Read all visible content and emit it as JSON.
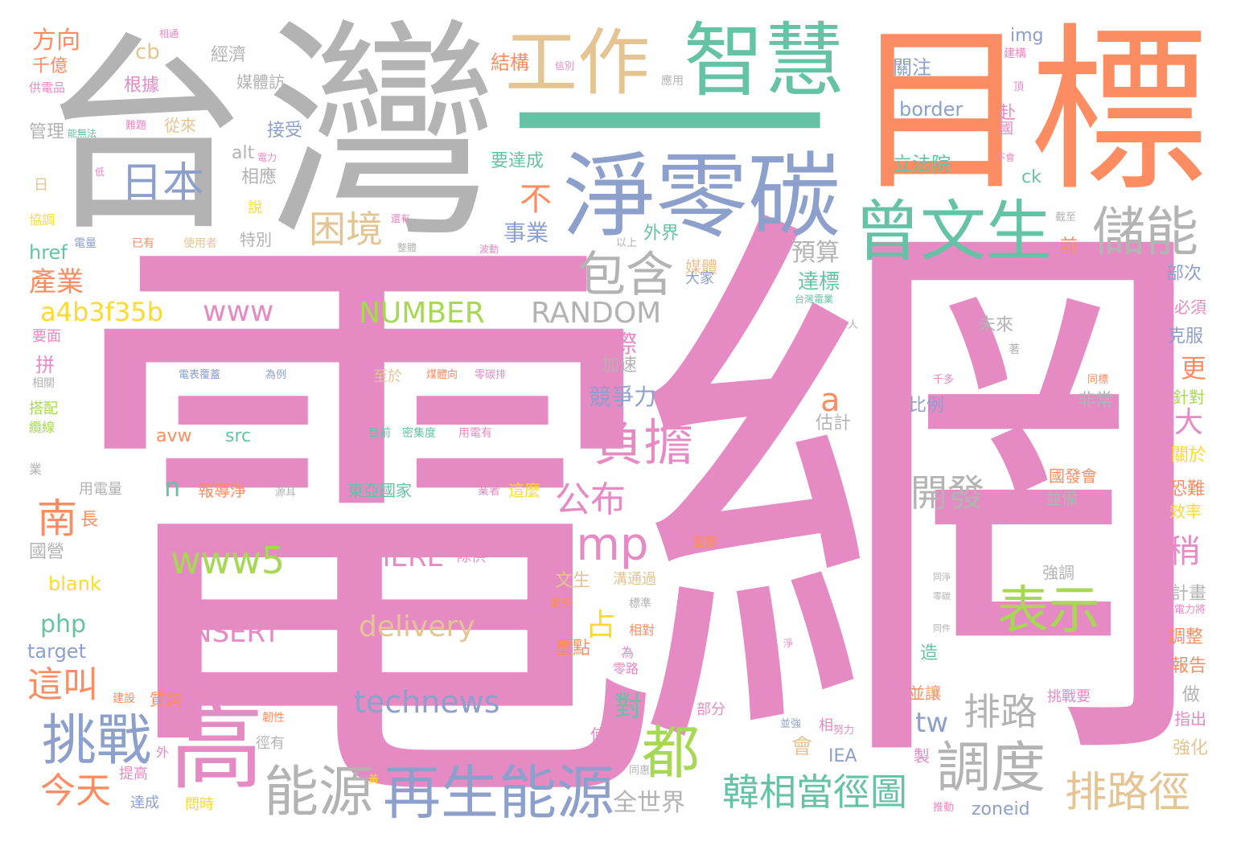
{
  "palette": {
    "pink": "#e58ac3",
    "gray": "#b3b3b3",
    "orange": "#fc8d62",
    "green": "#66c2a5",
    "blue": "#8da0cb",
    "tan": "#e5c494",
    "lime": "#a6d854",
    "yellow": "#ffd92f"
  },
  "words": {
    "w_dianwang_1": "電",
    "w_dianwang_2": "網",
    "w_taiwan_1": "台",
    "w_taiwan_2": "灣",
    "w_mubiao_1": "目",
    "w_mubiao_2": "標",
    "w_yi": "一",
    "w_jinglingtan": "淨零碳",
    "w_zhihui": "智慧",
    "w_gongzuo": "工作",
    "w_zengwensheng": "曾文生",
    "w_chuneng": "儲能",
    "w_riben": "日本",
    "w_gao": "高",
    "w_zaishengnengyuan": "再生能源",
    "w_nengyuan": "能源",
    "w_tiaozhan": "挑戰",
    "w_fudan": "負擔",
    "w_biaoshi": "表示",
    "w_tiaodu": "調度",
    "w_dou": "都",
    "w_paiLujing": "排路徑",
    "w_hanxiangdang": "韓相當徑圖",
    "w_baohan": "包含",
    "w_kunjing": "困境",
    "w_amp": "amp",
    "w_www5": "www5",
    "w_technews": "technews",
    "w_delivery": "delivery",
    "w_insert": "INSERT",
    "w_here": "HERE",
    "w_number": "NUMBER",
    "w_random": "RANDOM",
    "w_www": "www",
    "w_a4b": "a4b3f35b",
    "w_kaifa": "開發",
    "w_gongbu": "公布",
    "w_jintian": "今天",
    "w_zhejiao": "這叫",
    "w_nan": "南",
    "w_chanye": "產業",
    "w_fangxiang": "方向",
    "w_qianyi": "千億",
    "w_paiLu": "排路",
    "w_guanzhu": "關注",
    "w_border": "border",
    "w_lifayuan": "立法院",
    "w_img": "img",
    "w_guoji": "國際",
    "w_jingzhengli": "競爭力",
    "w_shiye": "事業",
    "w_bu": "不",
    "w_yusuan": "預算",
    "w_dabiao": "達標",
    "w_quanshijie": "全世界",
    "w_shao": "稍",
    "w_da": "大",
    "w_geng": "更",
    "w_zhan": "占",
    "w_dui": "對",
    "w_php": "php",
    "w_target": "target",
    "w_blank": "blank",
    "w_href": "href",
    "w_tw": "tw",
    "w_iea": "IEA",
    "w_zoneid": "zoneid",
    "w_avw": "avw",
    "w_src": "src",
    "w_n": "n",
    "w_a": "a",
    "w_cb": "cb",
    "w_alt": "alt",
    "w_ck": "ck",
    "w_jiegou": "結構",
    "w_jingji": "經濟",
    "w_genju": "根據",
    "w_meitifang": "媒體訪",
    "w_jieshou": "接受",
    "w_xiangying": "相應",
    "w_tebie": "特別",
    "w_guanli": "管理",
    "w_congLai": "從來",
    "w_yaodacheng": "要達成",
    "w_waijie": "外界",
    "w_meiti": "媒體",
    "w_dajia": "大家",
    "w_weilai": "未來",
    "w_jiasu": "加速",
    "w_bili": "比例",
    "w_guji": "估計",
    "w_feichang": "非常",
    "w_bingbei": "並備",
    "w_guofahui": "國發會",
    "w_qiangdiao": "強調",
    "w_jihua": "計畫",
    "w_tiaozheng": "調整",
    "w_baogao": "報告",
    "w_zuo": "做",
    "w_zhichu": "指出",
    "w_qianghua": "強化",
    "w_kongnan": "恐難",
    "w_xiaolv": "效率",
    "w_guanyu": "關於",
    "w_zhendui": "針對",
    "w_kefu": "克服",
    "w_bixu": "必須",
    "w_bu_ci": "部次",
    "w_qian": "前",
    "w_fu": "赴",
    "w_guo": "國",
    "w_yaomian": "要面",
    "w_pin": "拼",
    "w_dajpei": "搭配",
    "w_guoying": "國營",
    "w_chang": "長",
    "w_yongdianliang": "用電量",
    "w_baodaojing": "報導淨",
    "w_dongya": "東亞國家",
    "w_zhemo": "這麼",
    "w_zhongdian": "重點",
    "w_tongshi": "同時",
    "w_shiyong": "使用",
    "w_bufen": "部分",
    "w_wenshsheng": "文生",
    "w_goutong": "溝通過",
    "w_chuGong": "除供",
    "w_zhongyao": "重要",
    "w_zhiyu": "至於",
    "w_zaoyin": "造",
    "w_bingrang": "並讓",
    "w_tiaozhanyao": "挑戰要",
    "w_zhi": "製",
    "w_wenshi": "問時",
    "w_dacheng": "達成",
    "w_tigao": "提高",
    "w_ri": "日",
    "w_shuo": "說",
    "w_gongdianpin": "供電品",
    "w_xieliao": "協調",
    "w_ye": "業",
    "w_mudi": "目前",
    "w_midu": "密集度",
    "w_yongdian": "用電有",
    "w_dianbiao": "電表覆蓋",
    "w_weili": "為例",
    "w_jinghao": "徑有",
    "w_renxing": "韌性",
    "w_lingtan": "零碳排",
    "w_meiliang": "煤體向",
    "w_xiangdui": "相對",
    "w_biaozhun": "標準",
    "w_wei": "為",
    "w_lingLu": "零路",
    "w_gengshi": "更是",
    "w_yiyou": "已有",
    "w_shiyongzhe": "使用者",
    "w_haiyou": "還有",
    "w_yishang": "以上",
    "w_dianliang": "電量",
    "w_hui": "會",
    "w_xiang": "相",
    "w_nuli": "努力",
    "w_bingqiang": "並強",
    "w_tonghui": "同惠",
    "w_tuidong": "推動",
    "w_gongye": "業者",
    "w_dianli": "電力將",
    "w_tongbiao": "同標",
    "w_qianduo": "千多",
    "w_jiegou2": "建構",
    "w_ding": "頂",
    "w_buhui": "不會",
    "w_jiezhi": "截至",
    "w_taidian": "台灣電業",
    "w_ren": "人",
    "w_zhu": "著",
    "w_tongjing": "同淨",
    "w_lingtan2": "零碳",
    "w_tongjian": "同件",
    "w_jing2": "淨",
    "w_yingyong": "應用",
    "w_xinzhi": "信別",
    "w_bodong": "波動",
    "w_jianshe": "建設",
    "w_zhixun": "質詢",
    "w_xiangguan": "相關",
    "w_dianlan": "纜線",
    "w_yuaner": "源耳",
    "w_nengwu": "能無法",
    "w_liandao": "電力",
    "w_zhuti": "難題",
    "w_di": "低",
    "w_xiangtong": "相通",
    "w_zhengti": "整體",
    "w_wai": "外",
    "w_jinengyuan": "黃"
  }
}
